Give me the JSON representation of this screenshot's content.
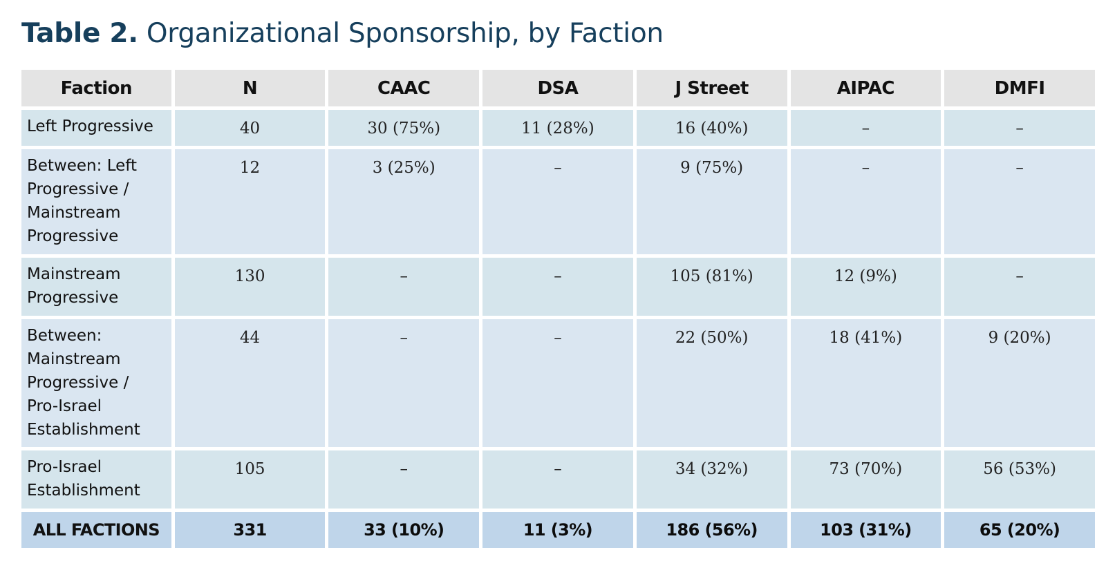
{
  "title": {
    "lead": "Table 2.",
    "text": "Organizational Sponsorship, by Faction"
  },
  "table": {
    "headers": [
      "Faction",
      "N",
      "CAAC",
      "DSA",
      "J Street",
      "AIPAC",
      "DMFI"
    ],
    "rows": [
      {
        "faction": [
          "Left Progressive"
        ],
        "values": [
          "40",
          "30 (75%)",
          "11 (28%)",
          "16 (40%)",
          "–",
          "–"
        ]
      },
      {
        "faction": [
          "Between: Left",
          "Progressive /",
          "Mainstream",
          "Progressive"
        ],
        "values": [
          "12",
          "3 (25%)",
          "–",
          "9 (75%)",
          "–",
          "–"
        ]
      },
      {
        "faction": [
          "Mainstream",
          "Progressive"
        ],
        "values": [
          "130",
          "–",
          "–",
          "105 (81%)",
          "12 (9%)",
          "–"
        ]
      },
      {
        "faction": [
          "Between:",
          "Mainstream",
          "Progressive /",
          "Pro-Israel",
          "Establishment"
        ],
        "values": [
          "44",
          "–",
          "–",
          "22 (50%)",
          "18 (41%)",
          "9 (20%)"
        ]
      },
      {
        "faction": [
          "Pro-Israel",
          "Establishment"
        ],
        "values": [
          "105",
          "–",
          "–",
          "34 (32%)",
          "73 (70%)",
          "56 (53%)"
        ]
      }
    ],
    "total": {
      "faction": "ALL FACTIONS",
      "values": [
        "331",
        "33 (10%)",
        "11 (3%)",
        "186 (56%)",
        "103 (31%)",
        "65 (20%)"
      ]
    }
  },
  "colors": {
    "title": "#163f5c",
    "header_bg": "#e4e4e4",
    "row_teal": "#d5e5ec",
    "row_blue": "#dae6f1",
    "total_bg": "#bfd5ea"
  }
}
